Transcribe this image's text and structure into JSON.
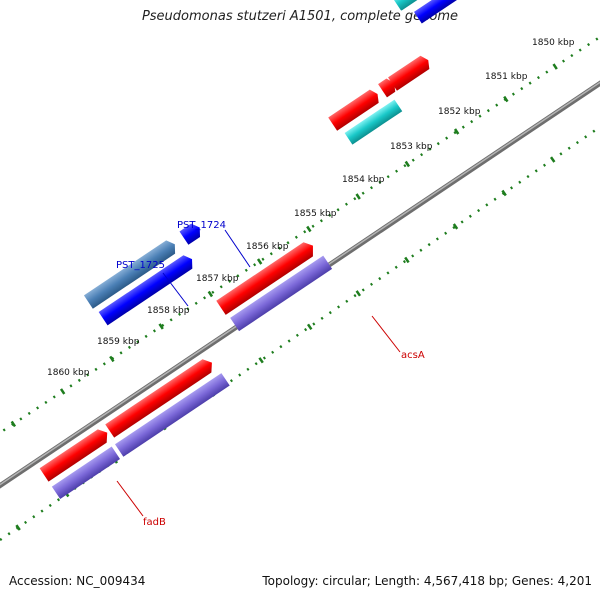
{
  "title": "Pseudomonas stutzeri A1501, complete genome",
  "footer": {
    "accession": "Accession: NC_009434",
    "summary": "Topology: circular; Length: 4,567,418 bp; Genes: 4,201"
  },
  "colors": {
    "backbone": "#8c8c8c",
    "tick": "#1e7d1e",
    "cds_red": "#ff0000",
    "cds_purple": "#7b68d8",
    "cds_blue": "#0000ff",
    "cds_steel": "#4a7fb5",
    "cds_cyan": "#19c8c8",
    "label_blue": "#0000cc",
    "label_red": "#cc0000"
  },
  "kbp_labels": [
    "1850 kbp",
    "1851 kbp",
    "1852 kbp",
    "1853 kbp",
    "1854 kbp",
    "1855 kbp",
    "1856 kbp",
    "1857 kbp",
    "1858 kbp",
    "1859 kbp",
    "1860 kbp"
  ],
  "gene_labels": {
    "pst_1724": "PST_1724",
    "pst_1725": "PST_1725",
    "acsa": "acsA",
    "fadb": "fadB"
  }
}
